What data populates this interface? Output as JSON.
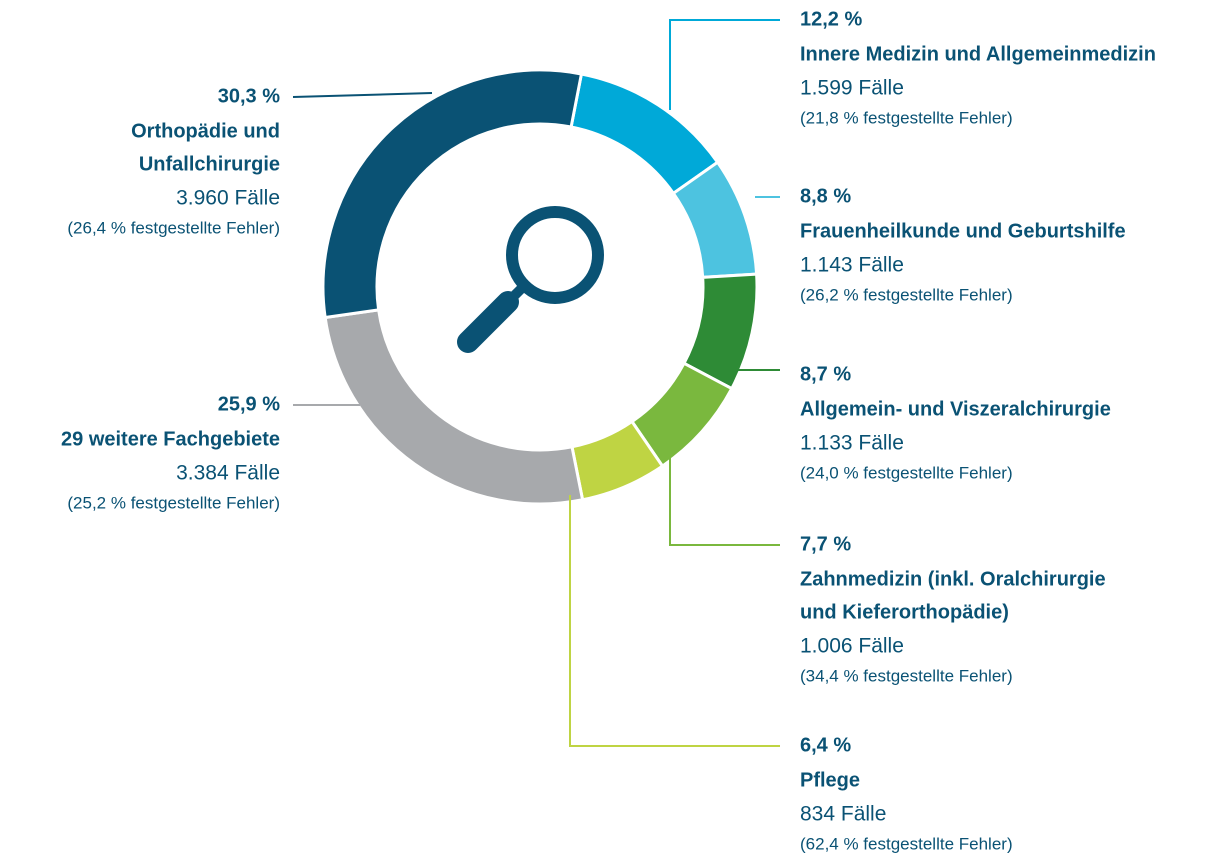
{
  "chart_data": {
    "type": "donut",
    "categories": [
      [
        "Innere Medizin und Allgemeinmedizin"
      ],
      [
        "Frauenheilkunde und Geburtshilfe"
      ],
      [
        "Allgemein- und Viszeralchirurgie"
      ],
      [
        "Zahnmedizin (inkl. Oralchirurgie",
        "und Kieferorthopädie)"
      ],
      [
        "Pflege"
      ],
      [
        "29 weitere Fachgebiete"
      ],
      [
        "Orthopädie und",
        "Unfallchirurgie"
      ]
    ],
    "values": [
      12.2,
      8.8,
      8.7,
      7.7,
      6.4,
      25.9,
      30.3
    ],
    "value_labels": [
      "12,2 %",
      "8,8 %",
      "8,7 %",
      "7,7 %",
      "6,4 %",
      "25,9 %",
      "30,3 %"
    ],
    "cases": [
      "1.599 Fälle",
      "1.143 Fälle",
      "1.133 Fälle",
      "1.006 Fälle",
      "834 Fälle",
      "3.384 Fälle",
      "3.960 Fälle"
    ],
    "errors": [
      "(21,8 % festgestellte Fehler)",
      "(26,2 % festgestellte Fehler)",
      "(24,0 % festgestellte Fehler)",
      "(34,4 % festgestellte Fehler)",
      "(62,4 % festgestellte Fehler)",
      "(25,2 % festgestellte Fehler)",
      "(26,4 % festgestellte Fehler)"
    ],
    "colors": [
      "#00a9d8",
      "#4dc3e0",
      "#2e8b36",
      "#7ab83e",
      "#bfd443",
      "#a7a9ac",
      "#0a5274"
    ]
  }
}
